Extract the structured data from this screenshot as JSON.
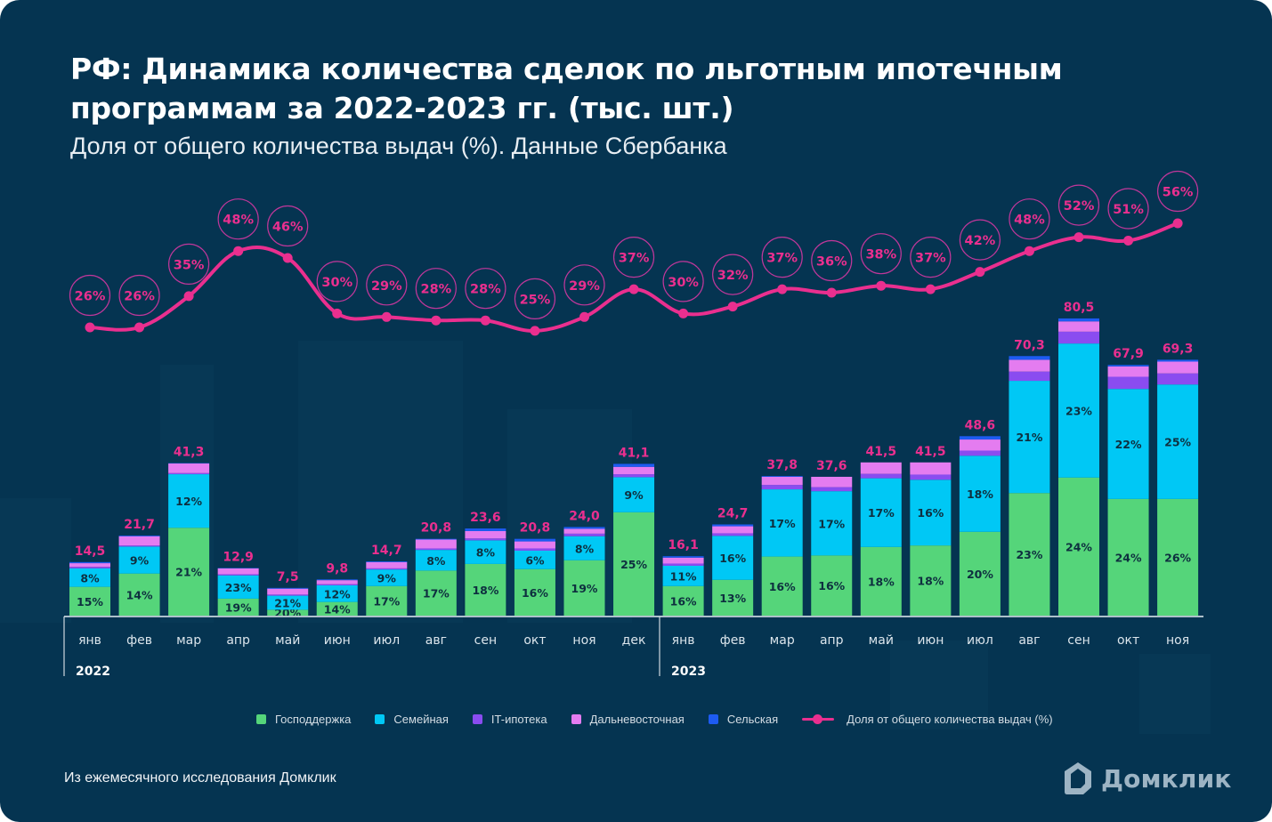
{
  "header": {
    "title_line1": "РФ: Динамика количества сделок по льготным ипотечным",
    "title_line2": "программам за 2022-2023 гг. (тыс. шт.)",
    "subtitle": "Доля от общего количества выдач (%). Данные Сбербанка"
  },
  "footer": {
    "source": "Из ежемесячного исследования Домклик",
    "logo_text": "Домклик"
  },
  "colors": {
    "background": "#053451",
    "gospodderzhka": "#55d57a",
    "semeynaya": "#00c8f5",
    "it": "#8a4cf0",
    "dalnevostochnaya": "#e47cf0",
    "selskaya": "#1d5bf2",
    "share_line": "#ea2f8f",
    "total_label": "#ea2f8f"
  },
  "chart_data": {
    "type": "bar",
    "stacked": true,
    "title": "РФ: Динамика количества сделок по льготным ипотечным программам за 2022-2023 гг. (тыс. шт.)",
    "subtitle": "Доля от общего количества выдач (%). Данные Сбербанка",
    "xlabel": "",
    "ylabel": "тыс. шт.",
    "ylim": [
      0,
      85
    ],
    "grid": false,
    "legend_position": "bottom",
    "year_groups": [
      {
        "label": "2022",
        "start": 0,
        "end": 11
      },
      {
        "label": "2023",
        "start": 12,
        "end": 22
      }
    ],
    "categories": [
      "янв",
      "фев",
      "мар",
      "апр",
      "май",
      "июн",
      "июл",
      "авг",
      "сен",
      "окт",
      "ноя",
      "дек",
      "янв",
      "фев",
      "мар",
      "апр",
      "май",
      "июн",
      "июл",
      "авг",
      "сен",
      "окт",
      "ноя"
    ],
    "totals": [
      "14,5",
      "21,7",
      "41,3",
      "12,9",
      "7,5",
      "9,8",
      "14,7",
      "20,8",
      "23,6",
      "20,8",
      "24,0",
      "41,1",
      "16,1",
      "24,7",
      "37,8",
      "37,6",
      "41,5",
      "41,5",
      "48,6",
      "70,3",
      "80,5",
      "67,9",
      "69,3"
    ],
    "series": [
      {
        "name": "Господдержка",
        "key": "gospodderzhka",
        "values": [
          7.8,
          11.4,
          23.8,
          4.6,
          1.6,
          3.7,
          8.0,
          12.2,
          14.0,
          12.6,
          15.0,
          28.0,
          8.0,
          9.7,
          16.0,
          16.3,
          18.6,
          19.0,
          22.7,
          33.2,
          37.4,
          31.6,
          31.6
        ],
        "share_labels": [
          "15%",
          "14%",
          "21%",
          "19%",
          "20%",
          "14%",
          "17%",
          "17%",
          "18%",
          "16%",
          "19%",
          "25%",
          "16%",
          "13%",
          "16%",
          "16%",
          "18%",
          "18%",
          "20%",
          "23%",
          "24%",
          "24%",
          "26%"
        ]
      },
      {
        "name": "Семейная",
        "key": "semeynaya",
        "values": [
          5.0,
          7.3,
          14.5,
          6.3,
          3.8,
          4.5,
          4.5,
          5.6,
          6.4,
          5.0,
          6.5,
          9.5,
          5.5,
          11.9,
          18.2,
          17.4,
          18.6,
          17.8,
          20.6,
          30.4,
          36.3,
          29.8,
          31.0
        ],
        "share_labels": [
          "8%",
          "9%",
          "12%",
          "23%",
          "21%",
          "12%",
          "9%",
          "8%",
          "8%",
          "6%",
          "8%",
          "9%",
          "11%",
          "16%",
          "17%",
          "17%",
          "17%",
          "16%",
          "18%",
          "21%",
          "23%",
          "22%",
          "25%"
        ]
      },
      {
        "name": "IT-ипотека",
        "key": "it",
        "values": [
          0.4,
          0.3,
          0.3,
          0.3,
          0.3,
          0.3,
          0.3,
          0.4,
          0.5,
          0.6,
          0.7,
          0.8,
          0.6,
          0.7,
          1.2,
          1.1,
          1.2,
          1.4,
          1.4,
          2.5,
          3.2,
          3.3,
          3.0
        ],
        "share_labels": []
      },
      {
        "name": "Дальневосточная",
        "key": "dalnevostochnaya",
        "values": [
          1.0,
          2.5,
          2.6,
          1.6,
          1.6,
          1.1,
          1.7,
          2.4,
          2.0,
          1.9,
          1.3,
          2.0,
          1.6,
          1.9,
          2.2,
          2.8,
          3.1,
          3.3,
          3.0,
          3.2,
          2.8,
          2.8,
          3.2
        ],
        "share_labels": []
      },
      {
        "name": "Сельская",
        "key": "selskaya",
        "values": [
          0.3,
          0.2,
          0.1,
          0.1,
          0.2,
          0.2,
          0.2,
          0.2,
          0.7,
          0.7,
          0.5,
          0.8,
          0.4,
          0.5,
          0.2,
          0.0,
          0.0,
          0.0,
          0.9,
          1.0,
          0.8,
          0.4,
          0.5
        ],
        "share_labels": []
      }
    ],
    "line_series": {
      "name": "Доля от общего количества выдач (%)",
      "unit": "%",
      "values": [
        26,
        26,
        35,
        48,
        46,
        30,
        29,
        28,
        28,
        25,
        29,
        37,
        30,
        32,
        37,
        36,
        38,
        37,
        42,
        48,
        52,
        51,
        56
      ],
      "labels": [
        "26%",
        "26%",
        "35%",
        "48%",
        "46%",
        "30%",
        "29%",
        "28%",
        "28%",
        "25%",
        "29%",
        "37%",
        "30%",
        "32%",
        "37%",
        "36%",
        "38%",
        "37%",
        "42%",
        "48%",
        "52%",
        "51%",
        "56%"
      ]
    }
  },
  "legend": {
    "items": [
      {
        "label": "Господдержка",
        "color": "#55d57a"
      },
      {
        "label": "Семейная",
        "color": "#00c8f5"
      },
      {
        "label": "IT-ипотека",
        "color": "#8a4cf0"
      },
      {
        "label": "Дальневосточная",
        "color": "#e47cf0"
      },
      {
        "label": "Сельская",
        "color": "#1d5bf2"
      }
    ],
    "line_label": "Доля от общего количества выдач (%)"
  }
}
